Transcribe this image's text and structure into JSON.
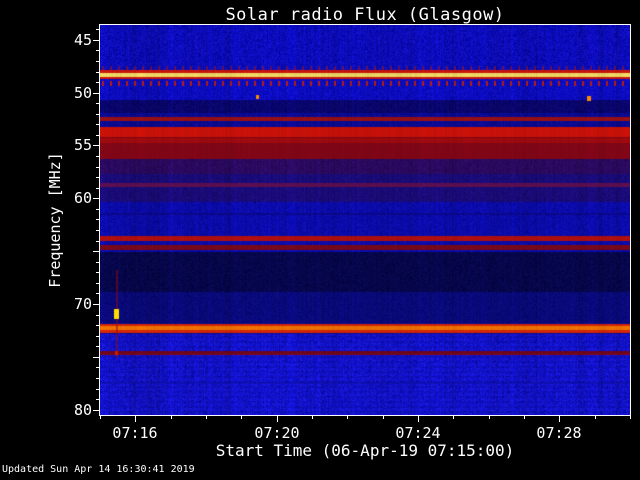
{
  "chart_data": {
    "type": "heatmap",
    "title": "Solar radio Flux (Glasgow)",
    "xlabel": "Start Time (06-Apr-19 07:15:00)",
    "ylabel": "Frequency [MHz]",
    "time_start": "07:15:00",
    "freq_min": 43.6,
    "freq_max": 80.5,
    "colors": {
      "text": "#ffffff",
      "frame": "#ffffff",
      "page_bg": "#000000"
    },
    "x_axis": {
      "duration_min": 15,
      "minor_step": 1,
      "major": [
        {
          "m": 1,
          "label": "07:16"
        },
        {
          "m": 5,
          "label": "07:20"
        },
        {
          "m": 9,
          "label": "07:24"
        },
        {
          "m": 13,
          "label": "07:28"
        }
      ]
    },
    "y_axis": {
      "minor_step": 1,
      "major": [
        {
          "f": 45,
          "label": "45"
        },
        {
          "f": 50,
          "label": "50"
        },
        {
          "f": 55,
          "label": "55"
        },
        {
          "f": 60,
          "label": "60"
        },
        {
          "f": 65,
          "label": ""
        },
        {
          "f": 70,
          "label": "70"
        },
        {
          "f": 75,
          "label": ""
        },
        {
          "f": 80,
          "label": "80"
        }
      ]
    },
    "background_bands": [
      {
        "f0": 43.6,
        "f1": 48.75,
        "color": "#0d0dc0",
        "noise": 55
      },
      {
        "f0": 48.75,
        "f1": 50.7,
        "color": "#0d0dc6",
        "noise": 45
      },
      {
        "f0": 50.7,
        "f1": 51.95,
        "color": "#0a0670",
        "noise": 28
      },
      {
        "f0": 51.95,
        "f1": 56.25,
        "color": "#0b0b96",
        "noise": 30
      },
      {
        "f0": 56.25,
        "f1": 57.7,
        "color": "#2c0a62",
        "noise": 30
      },
      {
        "f0": 57.7,
        "f1": 60.3,
        "color": "#1b0c7c",
        "noise": 30
      },
      {
        "f0": 60.3,
        "f1": 65.1,
        "color": "#0c0cb0",
        "noise": 35
      },
      {
        "f0": 65.1,
        "f1": 68.9,
        "color": "#07074e",
        "noise": 28
      },
      {
        "f0": 68.9,
        "f1": 71.8,
        "color": "#0a0a7e",
        "noise": 28
      },
      {
        "f0": 71.8,
        "f1": 72.85,
        "color": "#0b0b92",
        "noise": 28
      },
      {
        "f0": 72.85,
        "f1": 80.5,
        "color": "#1414d4",
        "noise": 60
      }
    ],
    "bands": [
      {
        "name": "rfi-48-red",
        "f0": 47.85,
        "f1": 48.75,
        "color": "#e41800",
        "alpha": 0.95
      },
      {
        "name": "rfi-48-core",
        "f0": 48.1,
        "f1": 48.5,
        "color": "#ffe96a",
        "alpha": 1
      },
      {
        "name": "line-52-5",
        "f0": 52.3,
        "f1": 52.65,
        "color": "#b41208",
        "alpha": 0.9
      },
      {
        "name": "band-53-7",
        "f0": 53.25,
        "f1": 54.15,
        "color": "#de1404",
        "alpha": 0.97
      },
      {
        "name": "band-55",
        "f0": 54.15,
        "f1": 56.25,
        "color": "#8e0714",
        "alpha": 0.97
      },
      {
        "name": "band-55-top",
        "f0": 54.3,
        "f1": 54.75,
        "color": "#b00d0d",
        "alpha": 0.8
      },
      {
        "name": "line-58-8",
        "f0": 58.55,
        "f1": 58.95,
        "color": "#70124e",
        "alpha": 0.85
      },
      {
        "name": "faint-61-5",
        "f0": 61.4,
        "f1": 61.6,
        "color": "#0a0880",
        "alpha": 0.6
      },
      {
        "name": "line-63-8",
        "f0": 63.6,
        "f1": 64.05,
        "color": "#c61206",
        "alpha": 0.95
      },
      {
        "name": "line-64-6",
        "f0": 64.45,
        "f1": 64.85,
        "color": "#8e0a0a",
        "alpha": 0.9
      },
      {
        "name": "line-72-red",
        "f0": 71.9,
        "f1": 72.75,
        "color": "#e82a04",
        "alpha": 0.97
      },
      {
        "name": "line-72-core",
        "f0": 72.1,
        "f1": 72.5,
        "color": "#ff7a00",
        "alpha": 1
      },
      {
        "name": "line-74-6",
        "f0": 74.45,
        "f1": 74.8,
        "color": "#8c0808",
        "alpha": 0.9
      },
      {
        "name": "faint-77-5",
        "f0": 77.4,
        "f1": 77.6,
        "color": "#1010b0",
        "alpha": 0.5
      }
    ],
    "tick_rows": [
      {
        "f": 49.05,
        "spacing": 8,
        "w": 2,
        "h": 5,
        "color": "#d42200",
        "alpha": 0.9
      },
      {
        "f": 47.7,
        "spacing": 8,
        "w": 2,
        "h": 4,
        "color": "#c01800",
        "alpha": 0.5
      }
    ],
    "stripe_region": {
      "f0": 73.0
    },
    "events": [
      {
        "type": "vstreak",
        "t": 0.45,
        "f0": 66.8,
        "f1": 75.1,
        "w": 2,
        "color": "rgba(150,12,12,0.5)"
      },
      {
        "type": "blob",
        "t": 0.45,
        "f": 70.9,
        "w": 5,
        "h": 10,
        "color": "#ffdf00"
      },
      {
        "type": "dot",
        "t": 0.45,
        "f": 74.6,
        "w": 3,
        "h": 4,
        "color": "#c81e00"
      },
      {
        "type": "dot",
        "t": 4.45,
        "f": 50.45,
        "w": 3,
        "h": 4,
        "color": "#ff8a00"
      },
      {
        "type": "dot",
        "t": 13.85,
        "f": 50.5,
        "w": 4,
        "h": 5,
        "color": "#ff8a00"
      }
    ]
  },
  "footer": {
    "updated": "Updated Sun Apr 14 16:30:41 2019"
  }
}
